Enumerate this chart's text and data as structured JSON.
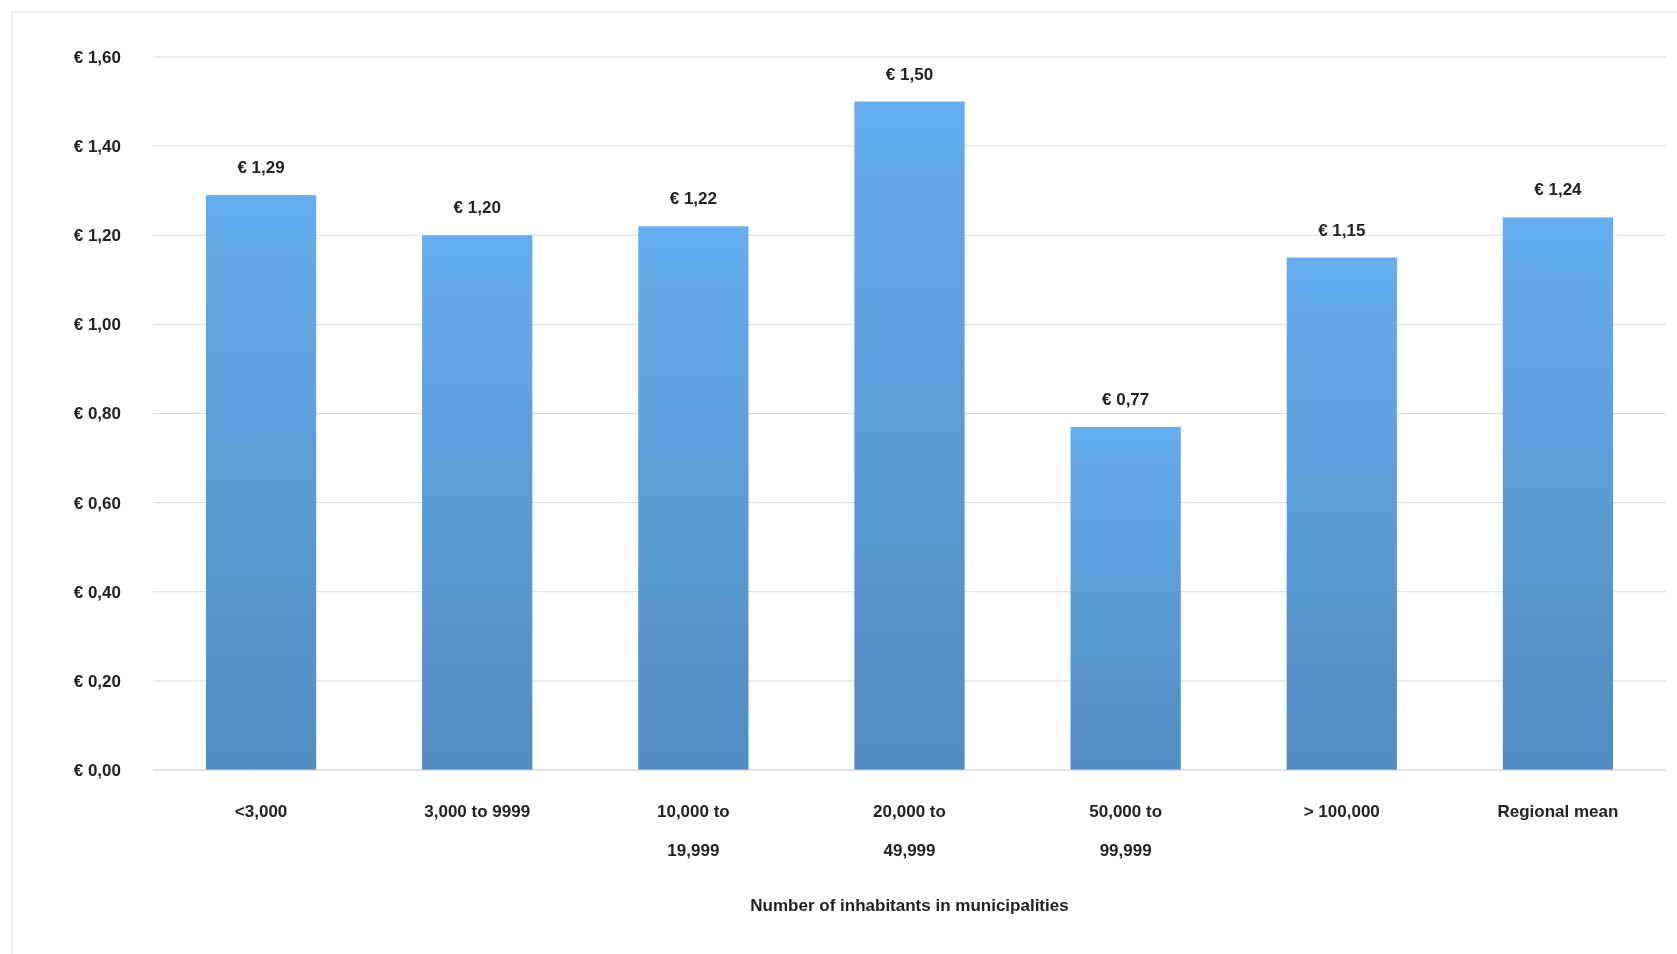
{
  "chart_data": {
    "type": "bar",
    "xlabel": "Number of inhabitants in municipalities",
    "categories": [
      "<3,000",
      "3,000 to 9999",
      "10,000 to 19,999",
      "20,000 to 49,999",
      "50,000 to 99,999",
      "> 100,000",
      "Regional mean"
    ],
    "values": [
      1.29,
      1.2,
      1.22,
      1.5,
      0.77,
      1.15,
      1.24
    ],
    "value_labels": [
      "€ 1,29",
      "€ 1,20",
      "€ 1,22",
      "€ 1,50",
      "€ 0,77",
      "€ 1,15",
      "€ 1,24"
    ],
    "color": "#5b9bd5",
    "ylim": [
      0,
      1.6
    ],
    "yticks": [
      {
        "value": 0,
        "label": "€ 0,00"
      },
      {
        "value": 0.2,
        "label": "€ 0,20"
      },
      {
        "value": 0.4,
        "label": "€ 0,40"
      },
      {
        "value": 0.6,
        "label": "€ 0,60"
      },
      {
        "value": 0.8,
        "label": "€ 0,80"
      },
      {
        "value": 1.0,
        "label": "€ 1,00"
      },
      {
        "value": 1.2,
        "label": "€ 1,20"
      },
      {
        "value": 1.4,
        "label": "€ 1,40"
      },
      {
        "value": 1.6,
        "label": "€ 1,60"
      }
    ],
    "grid": "y"
  }
}
